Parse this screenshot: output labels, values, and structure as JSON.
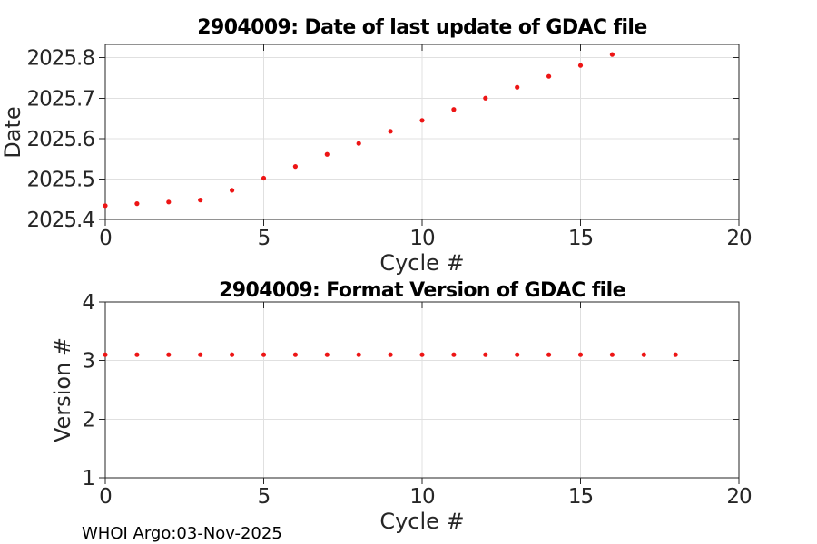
{
  "figure": {
    "footer": "WHOI Argo:03-Nov-2025"
  },
  "colors": {
    "marker": "#ed1515",
    "axis": "#262626",
    "grid": "#e0e0e0",
    "title": "#000000",
    "background": "#ffffff"
  },
  "chart_data": [
    {
      "type": "scatter",
      "title": "2904009: Date of last update of GDAC file",
      "xlabel": "Cycle #",
      "ylabel": "Date",
      "xlim": [
        0,
        20
      ],
      "ylim": [
        2025.4,
        2025.833
      ],
      "xticks": [
        0,
        5,
        10,
        15,
        20
      ],
      "xtick_labels": [
        "0",
        "5",
        "10",
        "15",
        "20"
      ],
      "yticks": [
        2025.4,
        2025.5,
        2025.6,
        2025.7,
        2025.8
      ],
      "ytick_labels": [
        "2025.4",
        "2025.5",
        "2025.6",
        "2025.7",
        "2025.8"
      ],
      "grid": true,
      "legend": "none",
      "marker": "filled-circle",
      "x": [
        0,
        1,
        2,
        3,
        4,
        5,
        6,
        7,
        8,
        9,
        10,
        11,
        12,
        13,
        14,
        15,
        16
      ],
      "y": [
        2025.434,
        2025.439,
        2025.443,
        2025.448,
        2025.472,
        2025.502,
        2025.531,
        2025.561,
        2025.588,
        2025.618,
        2025.645,
        2025.672,
        2025.7,
        2025.727,
        2025.754,
        2025.781,
        2025.808
      ]
    },
    {
      "type": "scatter",
      "title": "2904009: Format Version of GDAC file",
      "xlabel": "Cycle #",
      "ylabel": "Version #",
      "xlim": [
        0,
        20
      ],
      "ylim": [
        1,
        4
      ],
      "xticks": [
        0,
        5,
        10,
        15,
        20
      ],
      "xtick_labels": [
        "0",
        "5",
        "10",
        "15",
        "20"
      ],
      "yticks": [
        1,
        2,
        3,
        4
      ],
      "ytick_labels": [
        "1",
        "2",
        "3",
        "4"
      ],
      "grid": true,
      "legend": "none",
      "marker": "filled-circle",
      "x": [
        0,
        1,
        2,
        3,
        4,
        5,
        6,
        7,
        8,
        9,
        10,
        11,
        12,
        13,
        14,
        15,
        16,
        17,
        18
      ],
      "y": [
        3.1,
        3.1,
        3.1,
        3.1,
        3.1,
        3.1,
        3.1,
        3.1,
        3.1,
        3.1,
        3.1,
        3.1,
        3.1,
        3.1,
        3.1,
        3.1,
        3.1,
        3.1,
        3.1
      ]
    }
  ]
}
